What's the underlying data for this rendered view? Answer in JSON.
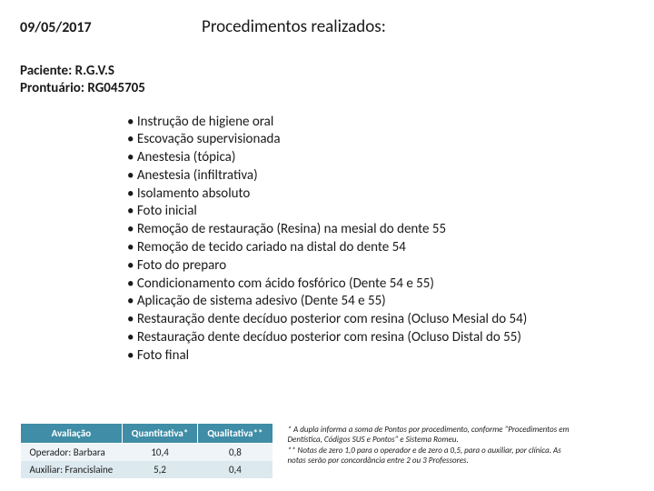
{
  "header": {
    "date": "09/05/2017",
    "title": "Procedimentos realizados:"
  },
  "patient": {
    "name_line": "Paciente: R.G.V.S",
    "record_line": "Prontuário: RG045705"
  },
  "procedures": [
    "Instrução de higiene oral",
    "Escovação supervisionada",
    "Anestesia (tópica)",
    "Anestesia (infiltrativa)",
    "Isolamento absoluto",
    "Foto inicial",
    "Remoção de restauração (Resina) na mesial do dente 55",
    "Remoção de tecido cariado na distal do dente 54",
    "Foto do preparo",
    "Condicionamento com ácido fosfórico (Dente 54 e 55)",
    "Aplicação de sistema adesivo (Dente 54 e 55)",
    "Restauração dente decíduo posterior com resina (Ocluso Mesial do 54)",
    "Restauração dente decíduo posterior com resina (Ocluso Distal do 55)",
    "Foto final"
  ],
  "evaluation": {
    "columns": [
      "Avaliação",
      "Quantitativa*",
      "Qualitativa**"
    ],
    "rows": [
      [
        "Operador: Barbara",
        "10,4",
        "0,8"
      ],
      [
        "Auxiliar: Francislaine",
        "5,2",
        "0,4"
      ]
    ],
    "header_bg": "#3f8da6",
    "header_fg": "#ffffff",
    "row_odd_bg": "#eef4f7",
    "row_even_bg": "#dce9ef"
  },
  "footnotes": {
    "line1": "* A dupla informa a soma de Pontos por procedimento, conforme \"Procedimentos em Dentística, Códigos SUS e Pontos\" e Sistema Romeu.",
    "line2": "** Notas de zero 1,0 para o operador e de zero a 0,5, para o auxiliar, por clínica. As notas serão por concordância entre 2 ou 3 Professores."
  }
}
